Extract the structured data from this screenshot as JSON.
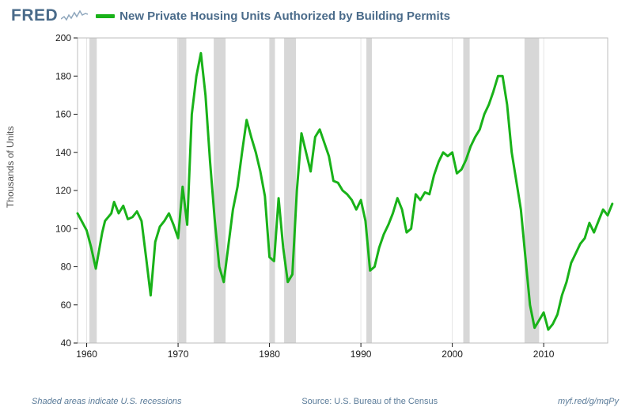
{
  "header": {
    "logo_text": "FRED",
    "logo_color": "#4a6b8a",
    "spark_color": "#8fa7bd",
    "title": "New Private Housing Units Authorized by Building Permits",
    "swatch_color": "#19b219"
  },
  "chart": {
    "type": "line",
    "ylabel": "Thousands of Units",
    "series_color": "#19b219",
    "line_width": 3,
    "background_color": "#ffffff",
    "border_color": "#bcbcbc",
    "grid_color": "#e5e5e5",
    "tick_color": "#1a1a1a",
    "recession_color": "#d7d7d7",
    "xlim": [
      1959,
      2017
    ],
    "ylim": [
      40,
      200
    ],
    "ytick_step": 20,
    "yticks": [
      40,
      60,
      80,
      100,
      120,
      140,
      160,
      180,
      200
    ],
    "xticks": [
      1960,
      1970,
      1980,
      1990,
      2000,
      2010
    ],
    "label_fontsize": 12,
    "recessions": [
      [
        1960.3,
        1961.1
      ],
      [
        1969.9,
        1970.9
      ],
      [
        1973.9,
        1975.2
      ],
      [
        1980.0,
        1980.6
      ],
      [
        1981.6,
        1982.9
      ],
      [
        1990.6,
        1991.2
      ],
      [
        2001.2,
        2001.9
      ],
      [
        2007.9,
        2009.5
      ]
    ],
    "data": [
      [
        1959.0,
        108
      ],
      [
        1960.0,
        99
      ],
      [
        1960.5,
        90
      ],
      [
        1961.0,
        79
      ],
      [
        1961.7,
        98
      ],
      [
        1962.0,
        104
      ],
      [
        1962.7,
        108
      ],
      [
        1963.0,
        114
      ],
      [
        1963.5,
        108
      ],
      [
        1964.0,
        112
      ],
      [
        1964.5,
        105
      ],
      [
        1965.0,
        106
      ],
      [
        1965.5,
        109
      ],
      [
        1966.0,
        104
      ],
      [
        1966.5,
        85
      ],
      [
        1967.0,
        65
      ],
      [
        1967.5,
        93
      ],
      [
        1968.0,
        101
      ],
      [
        1968.5,
        104
      ],
      [
        1969.0,
        108
      ],
      [
        1969.5,
        102
      ],
      [
        1970.0,
        95
      ],
      [
        1970.5,
        122
      ],
      [
        1971.0,
        102
      ],
      [
        1971.5,
        160
      ],
      [
        1972.0,
        180
      ],
      [
        1972.5,
        192
      ],
      [
        1973.0,
        170
      ],
      [
        1973.5,
        135
      ],
      [
        1974.0,
        105
      ],
      [
        1974.5,
        80
      ],
      [
        1975.0,
        72
      ],
      [
        1975.5,
        91
      ],
      [
        1976.0,
        110
      ],
      [
        1976.5,
        122
      ],
      [
        1977.0,
        140
      ],
      [
        1977.5,
        157
      ],
      [
        1978.0,
        148
      ],
      [
        1978.5,
        140
      ],
      [
        1979.0,
        130
      ],
      [
        1979.5,
        117
      ],
      [
        1980.0,
        85
      ],
      [
        1980.5,
        83
      ],
      [
        1981.0,
        116
      ],
      [
        1981.5,
        90
      ],
      [
        1982.0,
        72
      ],
      [
        1982.5,
        76
      ],
      [
        1983.0,
        120
      ],
      [
        1983.5,
        150
      ],
      [
        1984.0,
        140
      ],
      [
        1984.5,
        130
      ],
      [
        1985.0,
        148
      ],
      [
        1985.5,
        152
      ],
      [
        1986.0,
        145
      ],
      [
        1986.5,
        138
      ],
      [
        1987.0,
        125
      ],
      [
        1987.5,
        124
      ],
      [
        1988.0,
        120
      ],
      [
        1988.5,
        118
      ],
      [
        1989.0,
        115
      ],
      [
        1989.5,
        110
      ],
      [
        1990.0,
        115
      ],
      [
        1990.5,
        104
      ],
      [
        1991.0,
        78
      ],
      [
        1991.5,
        80
      ],
      [
        1992.0,
        90
      ],
      [
        1992.5,
        97
      ],
      [
        1993.0,
        102
      ],
      [
        1993.5,
        108
      ],
      [
        1994.0,
        116
      ],
      [
        1994.5,
        110
      ],
      [
        1995.0,
        98
      ],
      [
        1995.5,
        100
      ],
      [
        1996.0,
        118
      ],
      [
        1996.5,
        115
      ],
      [
        1997.0,
        119
      ],
      [
        1997.5,
        118
      ],
      [
        1998.0,
        128
      ],
      [
        1998.5,
        135
      ],
      [
        1999.0,
        140
      ],
      [
        1999.5,
        138
      ],
      [
        2000.0,
        140
      ],
      [
        2000.5,
        129
      ],
      [
        2001.0,
        131
      ],
      [
        2001.5,
        136
      ],
      [
        2002.0,
        143
      ],
      [
        2002.5,
        148
      ],
      [
        2003.0,
        152
      ],
      [
        2003.5,
        160
      ],
      [
        2004.0,
        165
      ],
      [
        2004.5,
        172
      ],
      [
        2005.0,
        180
      ],
      [
        2005.5,
        180
      ],
      [
        2006.0,
        165
      ],
      [
        2006.5,
        140
      ],
      [
        2007.0,
        125
      ],
      [
        2007.5,
        110
      ],
      [
        2008.0,
        85
      ],
      [
        2008.5,
        60
      ],
      [
        2009.0,
        48
      ],
      [
        2009.5,
        52
      ],
      [
        2010.0,
        56
      ],
      [
        2010.5,
        47
      ],
      [
        2011.0,
        50
      ],
      [
        2011.5,
        55
      ],
      [
        2012.0,
        65
      ],
      [
        2012.5,
        72
      ],
      [
        2013.0,
        82
      ],
      [
        2013.5,
        87
      ],
      [
        2014.0,
        92
      ],
      [
        2014.5,
        95
      ],
      [
        2015.0,
        103
      ],
      [
        2015.5,
        98
      ],
      [
        2016.0,
        104
      ],
      [
        2016.5,
        110
      ],
      [
        2017.0,
        107
      ],
      [
        2017.5,
        113
      ]
    ]
  },
  "footer": {
    "left": "Shaded areas indicate U.S. recessions",
    "center": "Source: U.S. Bureau of the Census",
    "right": "myf.red/g/mqPy"
  }
}
